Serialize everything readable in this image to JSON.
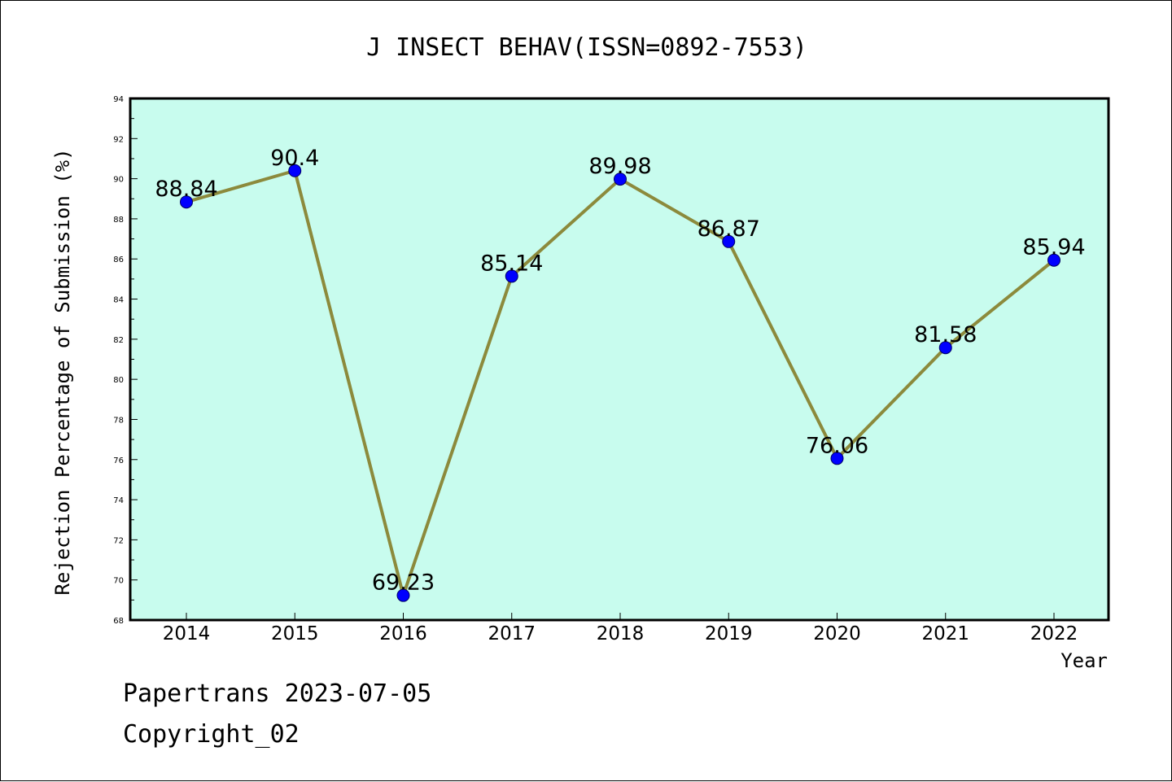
{
  "chart_data": {
    "type": "line",
    "title": "J INSECT BEHAV(ISSN=0892-7553)",
    "xlabel": "Year",
    "ylabel": "Rejection Percentage of Submission (%)",
    "categories": [
      "2014",
      "2015",
      "2016",
      "2017",
      "2018",
      "2019",
      "2020",
      "2021",
      "2022"
    ],
    "values": [
      88.84,
      90.4,
      69.23,
      85.14,
      89.98,
      86.87,
      76.06,
      81.58,
      85.94
    ],
    "data_labels": [
      "88.84",
      "90.4",
      "69.23",
      "85.14",
      "89.98",
      "86.87",
      "76.06",
      "81.58",
      "85.94"
    ],
    "ylim": [
      68,
      94
    ],
    "y_major_step": 2,
    "y_minor_step": 1,
    "y_ticks": [
      "68",
      "70",
      "72",
      "74",
      "76",
      "78",
      "80",
      "82",
      "84",
      "86",
      "88",
      "90",
      "92",
      "94"
    ],
    "grid": false,
    "legend": "none"
  },
  "colors": {
    "plot_background": "#c8fcee",
    "line": "#8c8a3c",
    "marker": "#0000ff",
    "frame": "#000000"
  },
  "footer": {
    "date": "Papertrans 2023-07-05",
    "copyright": "Copyright_02"
  }
}
